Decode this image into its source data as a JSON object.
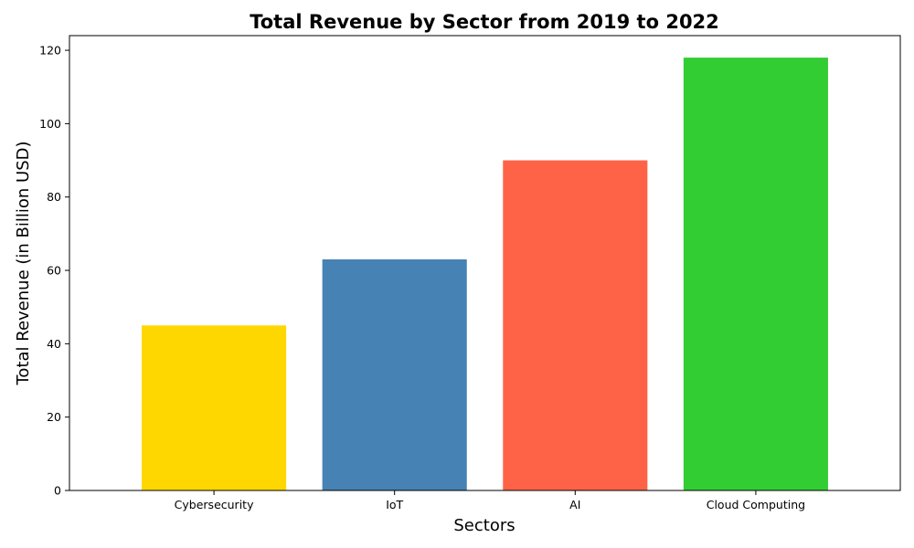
{
  "chart_data": {
    "type": "bar",
    "title": "Total Revenue by Sector from 2019 to 2022",
    "xlabel": "Sectors",
    "ylabel": "Total Revenue (in Billion USD)",
    "categories": [
      "Cybersecurity",
      "IoT",
      "AI",
      "Cloud Computing"
    ],
    "values": [
      45,
      63,
      90,
      118
    ],
    "colors": [
      "#FFD700",
      "#4682B4",
      "#FF6347",
      "#32CD32"
    ],
    "ylim": [
      0,
      124
    ],
    "yticks": [
      0,
      20,
      40,
      60,
      80,
      100,
      120
    ],
    "grid": false,
    "legend": "none"
  }
}
